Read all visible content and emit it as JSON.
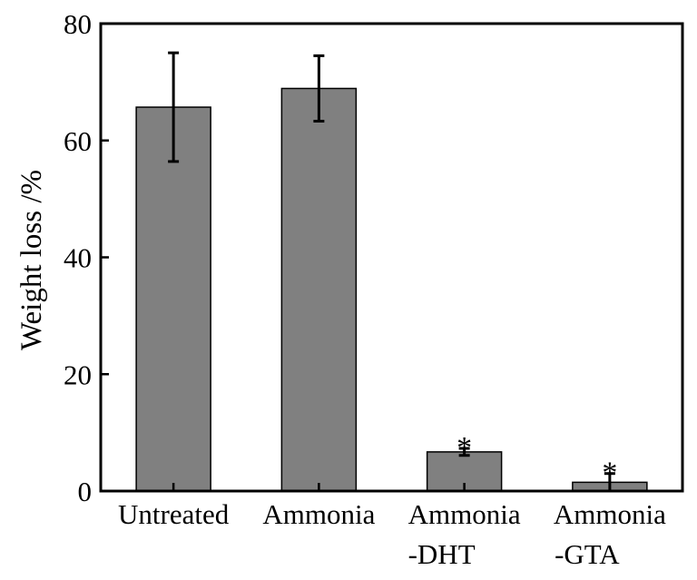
{
  "chart_data": {
    "type": "bar",
    "categories": [
      "Untreated",
      "Ammonia",
      "Ammonia\n-DHT",
      "Ammonia\n-GTA"
    ],
    "values": [
      65.7,
      68.9,
      6.7,
      1.5
    ],
    "error": [
      9.3,
      5.6,
      0.6,
      1.5
    ],
    "annotations": [
      "",
      "",
      "*",
      "*"
    ],
    "xlabel": "",
    "ylabel": "Weight loss /%",
    "ylim": [
      0,
      80
    ],
    "yticks": [
      0,
      20,
      40,
      60,
      80
    ],
    "grid": false,
    "bar_color": "#808080",
    "edge_color": "#000000"
  }
}
